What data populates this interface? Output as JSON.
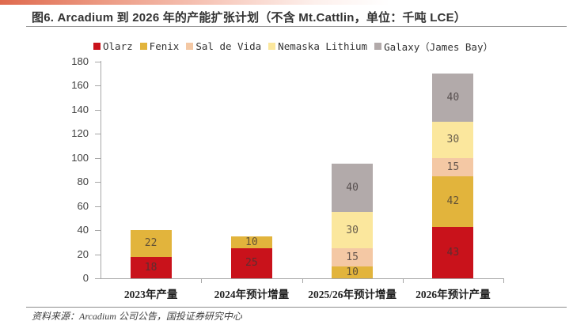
{
  "header": {
    "title": "图6. Arcadium 到 2026 年的产能扩张计划（不含 Mt.Cattlin，单位：千吨 LCE）"
  },
  "footer": {
    "source": "资料来源：Arcadium 公司公告，国投证券研究中心"
  },
  "chart_data": {
    "type": "bar",
    "stacked": true,
    "title": "图6. Arcadium 到 2026 年的产能扩张计划（不含 Mt.Cattlin，单位：千吨 LCE）",
    "categories": [
      "2023年产量",
      "2024年预计增量",
      "2025/26年预计增量",
      "2026年预计产量"
    ],
    "series": [
      {
        "name": "Olarz",
        "color": "#C9121B",
        "values": [
          18,
          25,
          0,
          43
        ]
      },
      {
        "name": "Fenix",
        "color": "#E2B43C",
        "values": [
          22,
          10,
          10,
          42
        ]
      },
      {
        "name": "Sal de Vida",
        "color": "#F4C8A4",
        "values": [
          0,
          0,
          15,
          15
        ]
      },
      {
        "name": "Nemaska Lithium",
        "color": "#FBE79D",
        "values": [
          0,
          0,
          30,
          30
        ]
      },
      {
        "name": "Galaxy（James Bay）",
        "color": "#B2AAAA",
        "values": [
          0,
          0,
          40,
          40
        ]
      }
    ],
    "totals": [
      40,
      35,
      95,
      170
    ],
    "ylim": [
      0,
      180
    ],
    "ytick_step": 20,
    "yticks": [
      0,
      20,
      40,
      60,
      80,
      100,
      120,
      140,
      160,
      180
    ],
    "grid": false,
    "legend_position": "top",
    "axis_color": "#A6A6A6"
  }
}
